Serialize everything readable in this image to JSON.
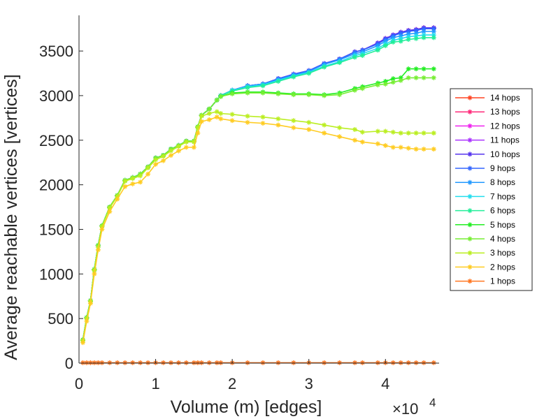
{
  "chart_data": {
    "type": "line",
    "title": "",
    "xlabel": "Volume (m) [edges]",
    "ylabel": "Average reachable vertices [vertices]",
    "x_exponent_label": "×10",
    "x_exponent": "4",
    "x_scale": 10000,
    "xlim": [
      0,
      4.7
    ],
    "ylim": [
      0,
      3900
    ],
    "xticks": [
      "0",
      "1",
      "2",
      "3",
      "4"
    ],
    "yticks": [
      "0",
      "500",
      "1000",
      "1500",
      "2000",
      "2500",
      "3000",
      "3500"
    ],
    "grid": false,
    "legend_position": "right",
    "x": [
      0.05,
      0.1,
      0.15,
      0.2,
      0.25,
      0.3,
      0.4,
      0.5,
      0.6,
      0.7,
      0.8,
      0.9,
      1.0,
      1.1,
      1.2,
      1.3,
      1.4,
      1.5,
      1.55,
      1.6,
      1.7,
      1.8,
      1.85,
      2.0,
      2.2,
      2.4,
      2.6,
      2.8,
      3.0,
      3.2,
      3.4,
      3.6,
      3.7,
      3.9,
      4.0,
      4.1,
      4.2,
      4.3,
      4.4,
      4.5,
      4.63
    ],
    "series": [
      {
        "name": "14 hops",
        "color": "#ff4422",
        "values": [
          260,
          510,
          700,
          1050,
          1320,
          1540,
          1750,
          1880,
          2050,
          2080,
          2120,
          2200,
          2300,
          2330,
          2400,
          2440,
          2490,
          2490,
          2650,
          2780,
          2850,
          2950,
          3000,
          3060,
          3110,
          3130,
          3190,
          3240,
          3280,
          3360,
          3410,
          3490,
          3510,
          3590,
          3640,
          3680,
          3710,
          3730,
          3740,
          3760,
          3760
        ]
      },
      {
        "name": "13 hops",
        "color": "#ff2a7a",
        "values": [
          260,
          510,
          700,
          1050,
          1320,
          1540,
          1750,
          1880,
          2050,
          2080,
          2120,
          2200,
          2300,
          2330,
          2400,
          2440,
          2490,
          2490,
          2650,
          2780,
          2850,
          2950,
          3000,
          3060,
          3110,
          3130,
          3190,
          3240,
          3280,
          3360,
          3410,
          3490,
          3510,
          3590,
          3640,
          3680,
          3710,
          3730,
          3740,
          3760,
          3760
        ]
      },
      {
        "name": "12 hops",
        "color": "#ee22ee",
        "values": [
          260,
          510,
          700,
          1050,
          1320,
          1540,
          1750,
          1880,
          2050,
          2080,
          2120,
          2200,
          2300,
          2330,
          2400,
          2440,
          2490,
          2490,
          2650,
          2780,
          2850,
          2950,
          3000,
          3060,
          3110,
          3130,
          3190,
          3240,
          3280,
          3360,
          3410,
          3490,
          3510,
          3590,
          3640,
          3680,
          3710,
          3730,
          3740,
          3760,
          3760
        ]
      },
      {
        "name": "11 hops",
        "color": "#aa33ff",
        "values": [
          260,
          510,
          700,
          1050,
          1320,
          1540,
          1750,
          1880,
          2050,
          2080,
          2120,
          2200,
          2300,
          2330,
          2400,
          2440,
          2490,
          2490,
          2650,
          2780,
          2850,
          2950,
          3000,
          3060,
          3110,
          3130,
          3190,
          3240,
          3280,
          3360,
          3410,
          3490,
          3510,
          3590,
          3640,
          3680,
          3710,
          3730,
          3740,
          3760,
          3760
        ]
      },
      {
        "name": "10 hops",
        "color": "#5533ee",
        "values": [
          260,
          510,
          700,
          1050,
          1320,
          1540,
          1750,
          1880,
          2050,
          2080,
          2120,
          2200,
          2300,
          2330,
          2400,
          2440,
          2490,
          2490,
          2650,
          2780,
          2850,
          2950,
          3000,
          3060,
          3110,
          3130,
          3190,
          3240,
          3280,
          3360,
          3410,
          3490,
          3510,
          3590,
          3640,
          3680,
          3710,
          3730,
          3740,
          3760,
          3760
        ]
      },
      {
        "name": "9 hops",
        "color": "#3366ff",
        "values": [
          260,
          510,
          700,
          1050,
          1320,
          1540,
          1750,
          1880,
          2050,
          2080,
          2120,
          2200,
          2300,
          2330,
          2400,
          2440,
          2490,
          2490,
          2650,
          2780,
          2850,
          2950,
          3000,
          3060,
          3110,
          3130,
          3190,
          3240,
          3280,
          3360,
          3410,
          3490,
          3510,
          3580,
          3630,
          3670,
          3700,
          3720,
          3730,
          3750,
          3750
        ]
      },
      {
        "name": "8 hops",
        "color": "#2299ff",
        "values": [
          260,
          510,
          700,
          1050,
          1320,
          1540,
          1750,
          1880,
          2050,
          2080,
          2120,
          2200,
          2300,
          2330,
          2400,
          2440,
          2490,
          2490,
          2650,
          2780,
          2850,
          2950,
          3000,
          3060,
          3110,
          3130,
          3180,
          3230,
          3270,
          3350,
          3400,
          3470,
          3490,
          3560,
          3610,
          3650,
          3670,
          3690,
          3700,
          3720,
          3720
        ]
      },
      {
        "name": "7 hops",
        "color": "#22ddee",
        "values": [
          260,
          510,
          700,
          1050,
          1320,
          1540,
          1750,
          1880,
          2050,
          2080,
          2120,
          2200,
          2300,
          2330,
          2400,
          2440,
          2490,
          2490,
          2650,
          2780,
          2850,
          2950,
          3000,
          3060,
          3100,
          3120,
          3170,
          3220,
          3260,
          3330,
          3380,
          3450,
          3470,
          3530,
          3580,
          3620,
          3640,
          3660,
          3670,
          3680,
          3680
        ]
      },
      {
        "name": "6 hops",
        "color": "#22ee99",
        "values": [
          260,
          510,
          700,
          1050,
          1320,
          1540,
          1750,
          1880,
          2050,
          2080,
          2120,
          2200,
          2300,
          2330,
          2400,
          2440,
          2490,
          2490,
          2650,
          2780,
          2850,
          2950,
          3000,
          3050,
          3090,
          3110,
          3160,
          3210,
          3250,
          3320,
          3370,
          3430,
          3450,
          3510,
          3560,
          3600,
          3610,
          3630,
          3640,
          3650,
          3650
        ]
      },
      {
        "name": "5 hops",
        "color": "#22ee22",
        "values": [
          260,
          510,
          700,
          1050,
          1320,
          1540,
          1750,
          1880,
          2050,
          2080,
          2120,
          2200,
          2300,
          2330,
          2400,
          2440,
          2490,
          2490,
          2650,
          2780,
          2850,
          2950,
          2990,
          3030,
          3040,
          3040,
          3030,
          3020,
          3020,
          3010,
          3030,
          3080,
          3100,
          3140,
          3160,
          3190,
          3200,
          3300,
          3300,
          3300,
          3300
        ]
      },
      {
        "name": "4 hops",
        "color": "#77ee33",
        "values": [
          260,
          510,
          700,
          1050,
          1320,
          1540,
          1750,
          1880,
          2050,
          2080,
          2120,
          2200,
          2300,
          2330,
          2400,
          2440,
          2490,
          2490,
          2650,
          2780,
          2850,
          2950,
          2990,
          3020,
          3030,
          3030,
          3020,
          3010,
          3010,
          3000,
          3010,
          3060,
          3080,
          3120,
          3130,
          3150,
          3170,
          3200,
          3200,
          3200,
          3200
        ]
      },
      {
        "name": "3 hops",
        "color": "#bbee22",
        "values": [
          250,
          500,
          690,
          1040,
          1300,
          1530,
          1740,
          1870,
          2040,
          2070,
          2100,
          2190,
          2280,
          2320,
          2380,
          2430,
          2480,
          2480,
          2640,
          2770,
          2800,
          2820,
          2800,
          2790,
          2770,
          2760,
          2740,
          2720,
          2700,
          2670,
          2640,
          2620,
          2590,
          2600,
          2600,
          2590,
          2580,
          2580,
          2580,
          2580,
          2580
        ]
      },
      {
        "name": "2 hops",
        "color": "#ffcc22",
        "values": [
          230,
          470,
          670,
          1000,
          1270,
          1500,
          1700,
          1840,
          1980,
          2010,
          2030,
          2120,
          2230,
          2270,
          2330,
          2380,
          2420,
          2420,
          2580,
          2710,
          2730,
          2760,
          2740,
          2720,
          2700,
          2690,
          2670,
          2640,
          2620,
          2580,
          2540,
          2500,
          2480,
          2460,
          2440,
          2420,
          2420,
          2410,
          2400,
          2400,
          2400
        ]
      },
      {
        "name": "1 hops",
        "color": "#ff7722",
        "values": [
          5,
          5,
          5,
          5,
          5,
          5,
          5,
          5,
          5,
          5,
          5,
          5,
          5,
          5,
          5,
          5,
          5,
          5,
          5,
          5,
          5,
          5,
          5,
          5,
          5,
          5,
          5,
          5,
          5,
          5,
          5,
          5,
          5,
          5,
          5,
          5,
          5,
          5,
          5,
          5,
          5
        ]
      }
    ]
  }
}
